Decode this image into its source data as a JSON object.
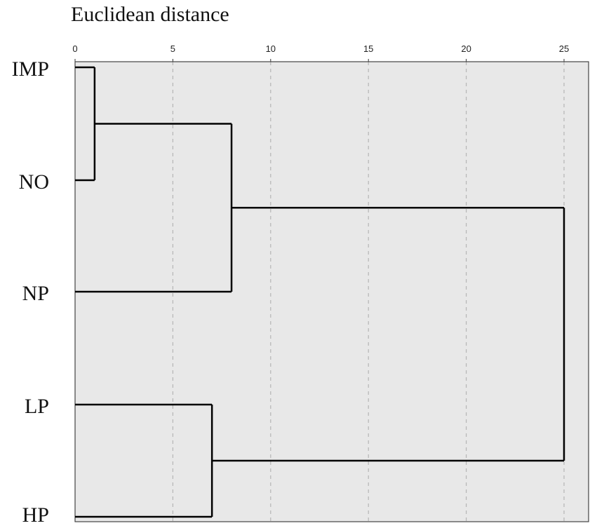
{
  "chart_data": {
    "type": "dendrogram",
    "title": "Euclidean distance",
    "x_ticks": [
      0,
      5,
      10,
      15,
      20,
      25
    ],
    "xlim": [
      0,
      25
    ],
    "grid": true,
    "leaves": [
      "IMP",
      "NO",
      "NP",
      "LP",
      "HP"
    ],
    "merges": [
      {
        "members": [
          "IMP",
          "NO"
        ],
        "distance": 1
      },
      {
        "members": [
          "IMP",
          "NO",
          "NP"
        ],
        "distance": 8
      },
      {
        "members": [
          "LP",
          "HP"
        ],
        "distance": 7
      },
      {
        "members": [
          "IMP",
          "NO",
          "NP",
          "LP",
          "HP"
        ],
        "distance": 25
      }
    ],
    "colors": {
      "plot_background": "#e8e8e8",
      "line": "#000000",
      "grid": "#b5b5b5"
    }
  }
}
